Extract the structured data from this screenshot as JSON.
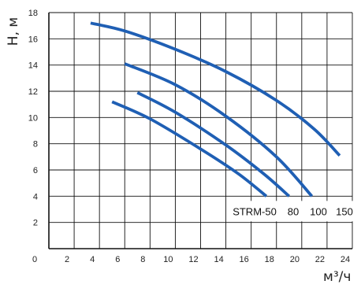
{
  "chart_data": {
    "type": "line",
    "ylabel": "Н, м",
    "xlabel": "м³/ч",
    "xlim": [
      0,
      24
    ],
    "ylim": [
      0,
      18
    ],
    "x_ticks": [
      "0",
      "2",
      "4",
      "6",
      "8",
      "10",
      "12",
      "14",
      "16",
      "18",
      "20",
      "22",
      "24"
    ],
    "y_ticks": [
      "0",
      "2",
      "4",
      "6",
      "8",
      "10",
      "12",
      "14",
      "16",
      "18"
    ],
    "grid": true,
    "line_color": "#1f5fb4",
    "curve_labels": [
      "STRM-50",
      "80",
      "100",
      "150"
    ],
    "series": [
      {
        "name": "STRM-50",
        "points": [
          [
            5.0,
            11.2
          ],
          [
            8.0,
            9.9
          ],
          [
            12.0,
            7.6
          ],
          [
            15.0,
            5.7
          ],
          [
            17.2,
            4.0
          ]
        ]
      },
      {
        "name": "80",
        "points": [
          [
            7.0,
            11.9
          ],
          [
            10.0,
            10.4
          ],
          [
            14.0,
            7.9
          ],
          [
            17.0,
            5.7
          ],
          [
            19.0,
            4.0
          ]
        ]
      },
      {
        "name": "100",
        "points": [
          [
            6.0,
            14.1
          ],
          [
            10.0,
            12.5
          ],
          [
            14.0,
            10.1
          ],
          [
            18.0,
            7.0
          ],
          [
            20.8,
            4.0
          ]
        ]
      },
      {
        "name": "150",
        "points": [
          [
            3.3,
            17.2
          ],
          [
            6.0,
            16.6
          ],
          [
            10.0,
            15.2
          ],
          [
            14.0,
            13.5
          ],
          [
            18.0,
            11.3
          ],
          [
            21.0,
            9.1
          ],
          [
            23.0,
            7.1
          ]
        ]
      }
    ]
  }
}
